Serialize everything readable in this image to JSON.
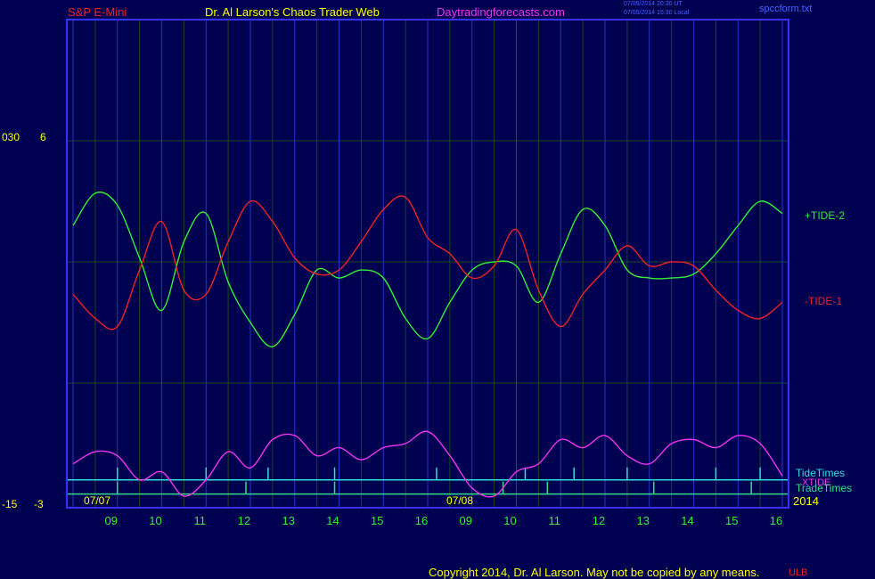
{
  "header": {
    "symbol": "S&P E-Mini",
    "title": "Dr. Al Larson's Chaos Trader Web",
    "site": "Daytradingforecasts.com",
    "time_ut": "07/05/2014 20:30 UT",
    "time_local": "07/05/2014 15:30 Local",
    "filename": "spccform.txt"
  },
  "footer": {
    "copyright": "Copyright 2014, Dr. Al Larson. May not be copied by any means.",
    "mark": "ULB"
  },
  "colors": {
    "background": "#000050",
    "frame": "#3333ff",
    "tide2": "#33ee33",
    "tide1": "#ee2222",
    "xtide": "#ee33ee",
    "tide_times": "#33dddd",
    "trade_times": "#33dd88",
    "grid": "#1a4a20",
    "text_yellow": "#ffff00",
    "text_green": "#33ee33"
  },
  "chart_data": {
    "type": "line",
    "title": "",
    "xlabel": "",
    "ylabel": "",
    "ylim": [
      -3,
      6
    ],
    "grid": true,
    "left_axis_labels": [
      {
        "outer": "030",
        "inner": "6"
      },
      {
        "outer": "-15",
        "inner": "-3"
      }
    ],
    "x_ticks": [
      "09",
      "10",
      "11",
      "12",
      "13",
      "14",
      "15",
      "16",
      "09",
      "10",
      "11",
      "12",
      "13",
      "14",
      "15",
      "16"
    ],
    "date_labels": [
      "07/07",
      "07/08"
    ],
    "year_label": "2014",
    "x": [
      0,
      0.5,
      1,
      1.5,
      2,
      2.5,
      3,
      3.5,
      4,
      4.5,
      5,
      5.5,
      6,
      6.5,
      7,
      7.5,
      8,
      8.5,
      9,
      9.5,
      10,
      10.5,
      11,
      11.5,
      12,
      12.5,
      13,
      13.5,
      14,
      14.5,
      15,
      15.5,
      16
    ],
    "series": [
      {
        "name": "+TIDE-2",
        "values": [
          3.9,
          4.7,
          4.4,
          3.1,
          1.8,
          3.5,
          4.2,
          2.5,
          1.5,
          0.9,
          1.7,
          2.8,
          2.6,
          2.8,
          2.6,
          1.6,
          1.1,
          2.0,
          2.8,
          3.0,
          2.9,
          2.0,
          3.2,
          4.3,
          3.9,
          2.8,
          2.6,
          2.6,
          2.7,
          3.2,
          3.9,
          4.5,
          4.2
        ]
      },
      {
        "name": "-TIDE-1",
        "values": [
          2.2,
          1.6,
          1.4,
          2.8,
          4.0,
          2.3,
          2.2,
          3.5,
          4.5,
          4.0,
          3.1,
          2.7,
          2.8,
          3.5,
          4.3,
          4.6,
          3.6,
          3.2,
          2.6,
          2.9,
          3.8,
          2.3,
          1.4,
          2.2,
          2.8,
          3.4,
          2.9,
          3.0,
          2.9,
          2.3,
          1.8,
          1.6,
          2.0
        ]
      },
      {
        "name": "XTIDE",
        "values": [
          -2.0,
          -1.7,
          -1.8,
          -2.4,
          -2.2,
          -2.8,
          -2.4,
          -1.7,
          -2.1,
          -1.4,
          -1.3,
          -1.8,
          -1.6,
          -1.9,
          -1.6,
          -1.5,
          -1.2,
          -1.8,
          -2.6,
          -2.8,
          -2.2,
          -2.0,
          -1.4,
          -1.6,
          -1.3,
          -1.8,
          -2.0,
          -1.5,
          -1.4,
          -1.6,
          -1.3,
          -1.5,
          -2.3
        ]
      }
    ],
    "tide_times": {
      "name": "TideTimes",
      "level": -2.4,
      "spikes": [
        1,
        3,
        4.4,
        5.9,
        8.2,
        10.2,
        11.3,
        12.5,
        14.5,
        15.5
      ]
    },
    "trade_times": {
      "name": "TradeTimes",
      "level": -2.75,
      "spikes": [
        1,
        3.9,
        5.9,
        9.7,
        10.7,
        13.1,
        15.3
      ]
    }
  }
}
